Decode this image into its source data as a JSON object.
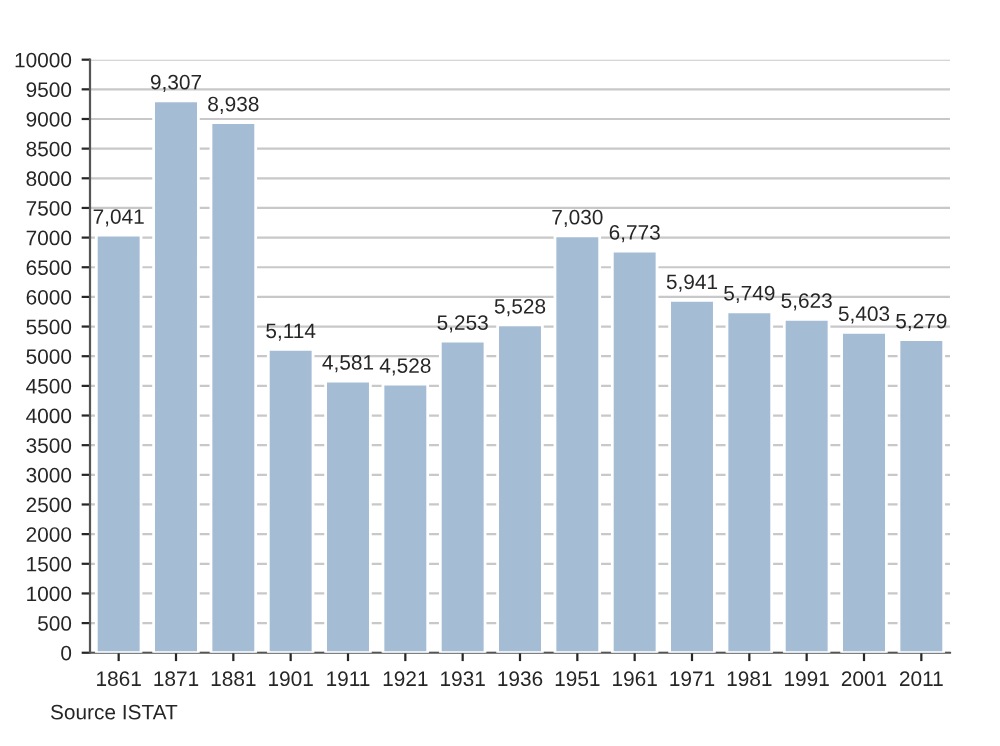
{
  "chart_data": {
    "type": "bar",
    "categories": [
      "1861",
      "1871",
      "1881",
      "1901",
      "1911",
      "1921",
      "1931",
      "1936",
      "1951",
      "1961",
      "1971",
      "1981",
      "1991",
      "2001",
      "2011"
    ],
    "values": [
      7041,
      9307,
      8938,
      5114,
      4581,
      4528,
      5253,
      5528,
      7030,
      6773,
      5941,
      5749,
      5623,
      5403,
      5279
    ],
    "value_labels": [
      "7,041",
      "9,307",
      "8,938",
      "5,114",
      "4,581",
      "4,528",
      "5,253",
      "5,528",
      "7,030",
      "6,773",
      "5,941",
      "5,749",
      "5,623",
      "5,403",
      "5,279"
    ],
    "color": "#a5bcd5",
    "ylim": [
      0,
      10000
    ],
    "yticks": [
      0,
      500,
      1000,
      1500,
      2000,
      2500,
      3000,
      3500,
      4000,
      4500,
      5000,
      5500,
      6000,
      6500,
      7000,
      7500,
      8000,
      8500,
      9000,
      9500,
      10000
    ],
    "grid": "y",
    "annotations": [
      "Source ISTAT"
    ]
  }
}
